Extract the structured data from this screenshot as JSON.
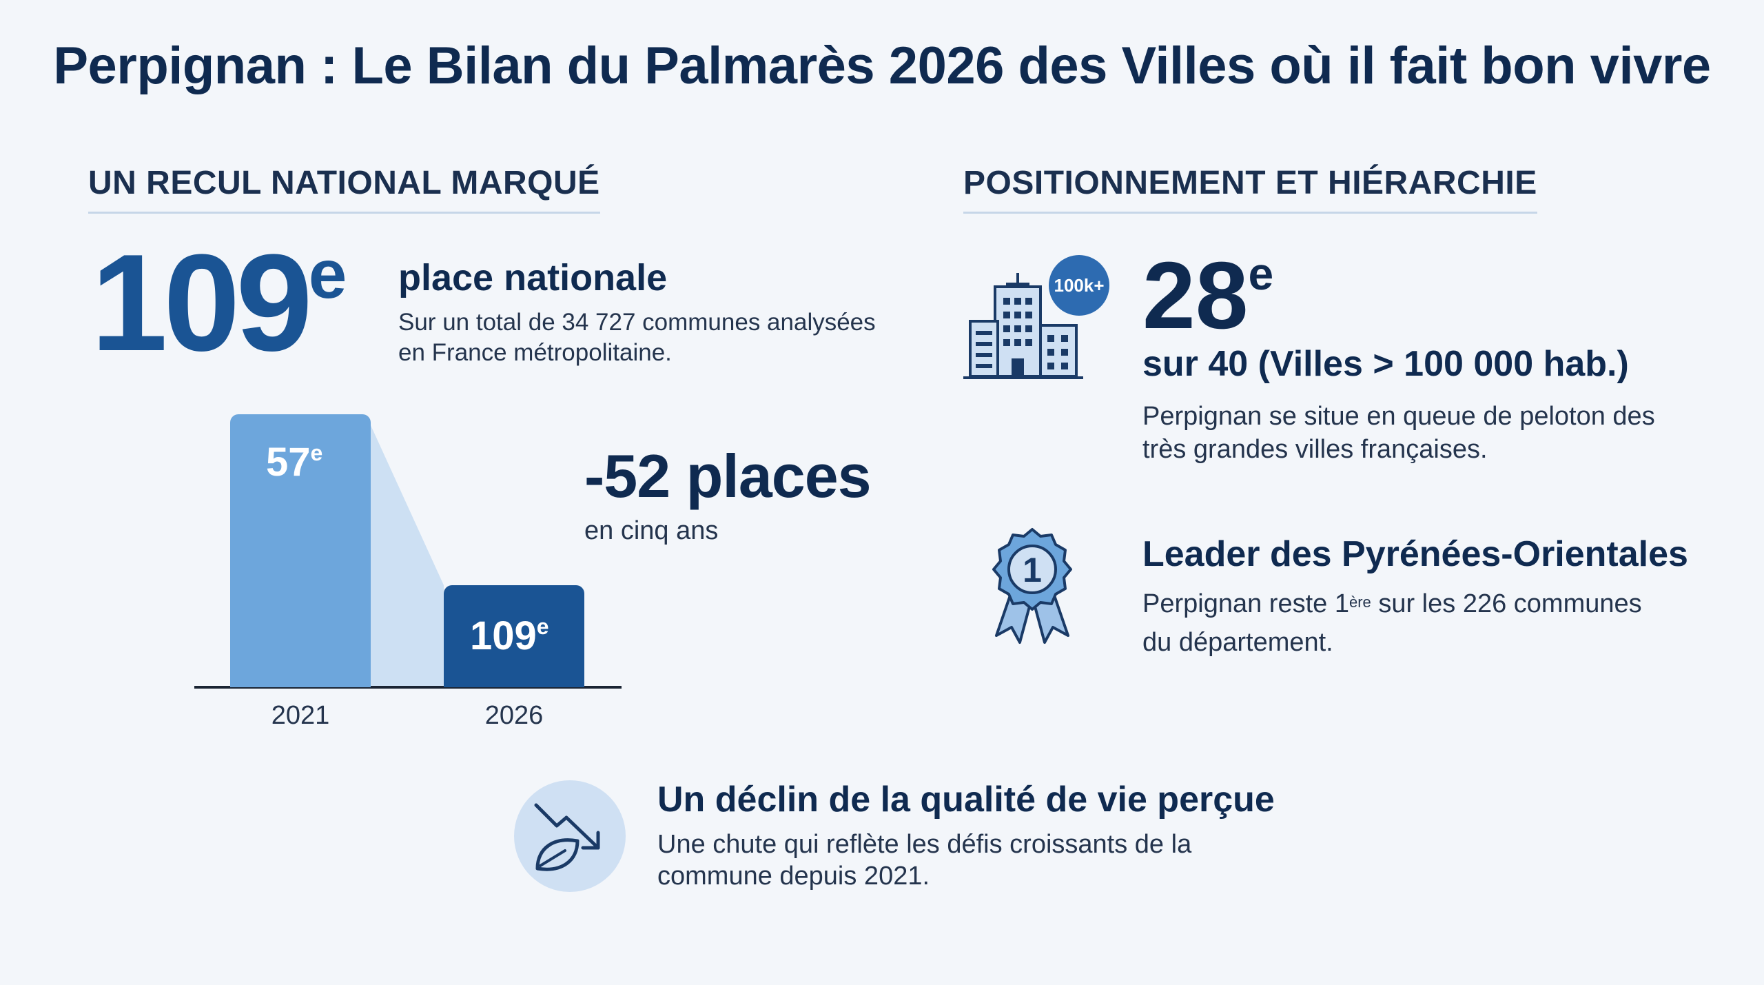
{
  "title": "Perpignan : Le Bilan du Palmarès 2026 des Villes où il fait bon vivre",
  "left": {
    "heading": "UN RECUL NATIONAL MARQUÉ",
    "rank": "109",
    "rank_suffix": "e",
    "rank_label": "place nationale",
    "rank_desc_line1": "Sur un total de 34 727 communes analysées",
    "rank_desc_line2": "en France métropolitaine.",
    "delta": "-52 places",
    "delta_sub": "en cinq ans"
  },
  "chart_data": {
    "type": "bar",
    "categories": [
      "2021",
      "2026"
    ],
    "values": [
      57,
      109
    ],
    "data_labels": [
      "57",
      "109"
    ],
    "label_suffix": "e",
    "colors": [
      "#6da6dc",
      "#1a5494"
    ]
  },
  "right": {
    "heading": "POSITIONNEMENT ET HIÉRARCHIE",
    "badge": "100k+",
    "rank": "28",
    "rank_suffix": "e",
    "rank_sub": "sur 40 (Villes > 100 000 hab.)",
    "rank_desc_line1": "Perpignan se situe en queue de peloton des",
    "rank_desc_line2": "très grandes villes françaises.",
    "leader_title": "Leader des Pyrénées-Orientales",
    "leader_medal_number": "1",
    "leader_desc_pre": "Perpignan reste 1",
    "leader_desc_sup": "ère",
    "leader_desc_post": " sur les 226 communes",
    "leader_desc_line2": "du département."
  },
  "bottom": {
    "title": "Un déclin de la qualité de vie perçue",
    "desc_line1": "Une chute qui reflète les défis croissants de la",
    "desc_line2": "commune depuis 2021."
  },
  "icons": [
    "city-buildings-icon",
    "medal-ribbon-icon",
    "trend-down-leaf-icon"
  ]
}
